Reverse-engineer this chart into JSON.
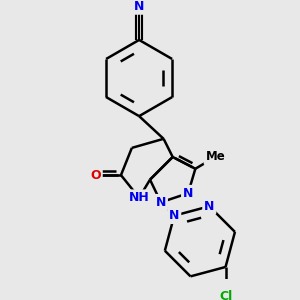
{
  "bg_color": "#e8e8e8",
  "bond_color": "#000000",
  "bond_width": 1.8,
  "atom_colors": {
    "N": "#0000ee",
    "O": "#dd0000",
    "Cl": "#00aa00",
    "C": "#000000",
    "H": "#008080"
  },
  "font_size": 8.5
}
